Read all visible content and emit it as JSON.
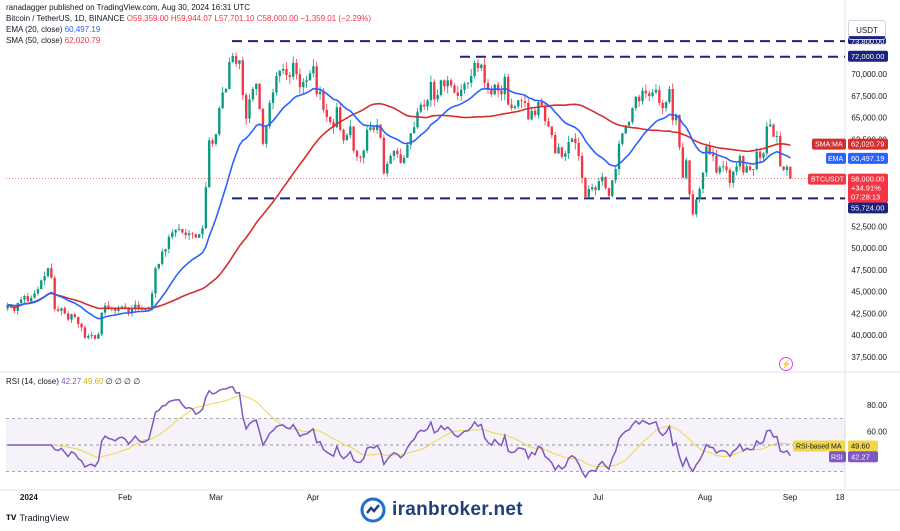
{
  "header": {
    "publisher": "ranadagger published on TradingView.com, Aug 30, 2024 16:31 UTC",
    "symbol_line": "Bitcoin / TetherUS, 1D, BINANCE",
    "ohlc": {
      "o": "O59,359.00",
      "h": "H59,944.07",
      "l": "L57,701.10",
      "c": "C58,000.00",
      "chg": "−1,359.01 (−2.29%)"
    },
    "ema_label": "EMA (20, close)",
    "ema_value": "60,497.19",
    "sma_label": "SMA (50, close)",
    "sma_value": "62,020.79"
  },
  "currency_button": "USDT",
  "rsi": {
    "label": "RSI (14, close)",
    "value": "42.27",
    "ma_value": "49.60",
    "placeholders": "∅ ∅ ∅ ∅",
    "ma_tag": "RSI-based MA",
    "ma_tag_value": "49.60",
    "rsi_tag": "RSI",
    "rsi_tag_value": "42.27",
    "ticks": [
      "80.00",
      "60.00"
    ]
  },
  "price_tags": {
    "sma": {
      "label": "SMA:MA",
      "value": "62,020.79"
    },
    "ema": {
      "label": "EMA",
      "value": "60,497.19"
    },
    "last": {
      "label": "BTCUSDT",
      "value": "58,000.00",
      "extra1": "+34.91%",
      "extra2": "07:28:13"
    },
    "top_line": "72,000.00",
    "support_line": "55,724.00",
    "top_partial": "73,800.00"
  },
  "price_ticks": [
    "70,000.00",
    "67,500.00",
    "65,000.00",
    "62,500.00",
    "52,500.00",
    "50,000.00",
    "47,500.00",
    "45,000.00",
    "42,500.00",
    "40,000.00",
    "37,500.00"
  ],
  "time_ticks": [
    "2024",
    "Feb",
    "Mar",
    "Apr",
    "Jul",
    "Aug",
    "Sep",
    "18"
  ],
  "footer": {
    "brand": "TradingView",
    "watermark": "iranbroker.net"
  },
  "colors": {
    "up": "#089981",
    "down": "#f23645",
    "ema": "#2962ff",
    "sma": "#d32f2f",
    "rsi": "#7e57c2",
    "rsi_ma": "#f0d64a",
    "lines": "#1a237e"
  },
  "chart_data": {
    "type": "candlestick",
    "price_range": [
      36000,
      76000
    ],
    "horizontal_levels": [
      73800,
      72000,
      55724
    ],
    "closes": [
      43500,
      43200,
      42800,
      43700,
      44100,
      44500,
      43900,
      44300,
      44800,
      45300,
      46300,
      46800,
      47700,
      46600,
      43000,
      42800,
      43100,
      42500,
      41800,
      42400,
      42100,
      41300,
      40900,
      39700,
      39900,
      40000,
      39600,
      40100,
      42600,
      43400,
      43100,
      43000,
      42800,
      43200,
      43300,
      43100,
      42600,
      43000,
      43500,
      43100,
      42900,
      43000,
      43200,
      44800,
      47700,
      48200,
      49600,
      49900,
      51300,
      51800,
      52100,
      52200,
      51800,
      51500,
      51700,
      51600,
      51200,
      51600,
      52300,
      57000,
      62400,
      62000,
      63100,
      66100,
      67900,
      68300,
      71400,
      72100,
      71200,
      71600,
      67600,
      64900,
      67100,
      68300,
      68900,
      66000,
      62000,
      64000,
      66700,
      67900,
      69800,
      70400,
      70600,
      69900,
      69700,
      71300,
      70000,
      68500,
      69100,
      69300,
      70100,
      70900,
      67700,
      68000,
      65900,
      65100,
      64500,
      63900,
      66200,
      63600,
      62400,
      63000,
      64000,
      61200,
      60500,
      60400,
      61200,
      63600,
      63900,
      63600,
      64200,
      62700,
      58600,
      59700,
      60600,
      61200,
      60800,
      59800,
      60400,
      61900,
      63200,
      63900,
      65700,
      66500,
      66300,
      67000,
      69100,
      67100,
      67600,
      69300,
      68600,
      69300,
      68700,
      67900,
      67500,
      68200,
      68900,
      69000,
      69800,
      71300,
      70700,
      71100,
      69000,
      68200,
      67700,
      68800,
      68100,
      67700,
      69700,
      66500,
      66100,
      66300,
      67000,
      66900,
      66700,
      64800,
      65800,
      65300,
      66800,
      66400,
      64600,
      64000,
      63000,
      60900,
      61600,
      60500,
      60900,
      62200,
      62600,
      62100,
      60600,
      58100,
      55900,
      56800,
      57000,
      56700,
      57700,
      58200,
      56900,
      56000,
      57800,
      59100,
      62000,
      63200,
      64100,
      64500,
      66100,
      67400,
      66900,
      68100,
      67800,
      67500,
      67900,
      68200,
      66700,
      66100,
      66800,
      68300,
      64700,
      65300,
      61600,
      58100,
      60100,
      56200,
      53900,
      55600,
      56800,
      58700,
      61700,
      60800,
      60600,
      58700,
      59300,
      59400,
      59000,
      57500,
      58800,
      59400,
      60600,
      58700,
      59400,
      59000,
      59100,
      61100,
      60400,
      60900,
      64000,
      64200,
      62800,
      62900,
      59400,
      59000,
      59359,
      58000
    ],
    "ema20_last": 60497.19,
    "sma50_last": 62020.79,
    "last_close": 58000.0,
    "rsi_last": 42.27,
    "rsi_ma_last": 49.6
  }
}
